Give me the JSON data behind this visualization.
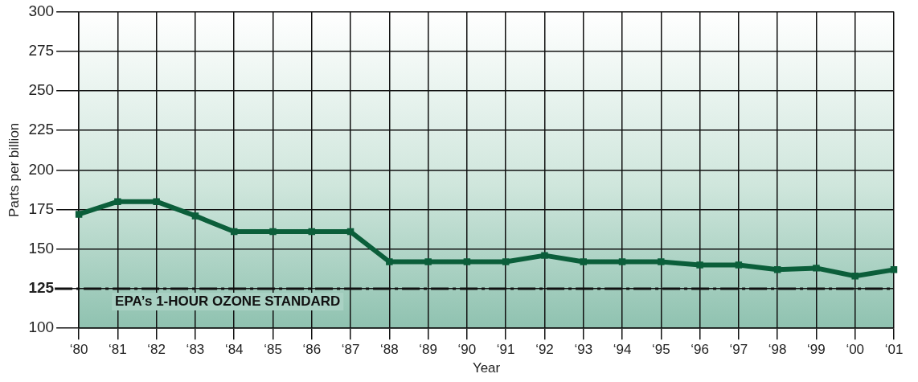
{
  "chart_data": {
    "type": "line",
    "xlabel": "Year",
    "ylabel": "Parts per billion",
    "categories": [
      "‘80",
      "‘81",
      "‘82",
      "‘83",
      "‘84",
      "‘85",
      "‘86",
      "‘87",
      "‘88",
      "‘89",
      "‘90",
      "‘91",
      "‘92",
      "‘93",
      "‘94",
      "‘95",
      "‘96",
      "‘97",
      "‘98",
      "‘99",
      "‘00",
      "‘01"
    ],
    "series": [
      {
        "color": "#0b5e3a",
        "values": [
          172,
          180,
          180,
          171,
          161,
          161,
          161,
          161,
          142,
          142,
          142,
          142,
          146,
          142,
          142,
          142,
          140,
          140,
          137,
          138,
          133,
          137
        ]
      }
    ],
    "ylim": [
      100,
      300
    ],
    "yticks": [
      100,
      125,
      150,
      175,
      200,
      225,
      250,
      275,
      300
    ],
    "grid": true,
    "marker": "square",
    "line_style": "solid",
    "ref_lines": [
      {
        "axis": "y",
        "value": 125,
        "label": "EPA’s 1-HOUR OZONE STANDARD",
        "color": "#111111",
        "line_style": "dashdot"
      }
    ]
  }
}
